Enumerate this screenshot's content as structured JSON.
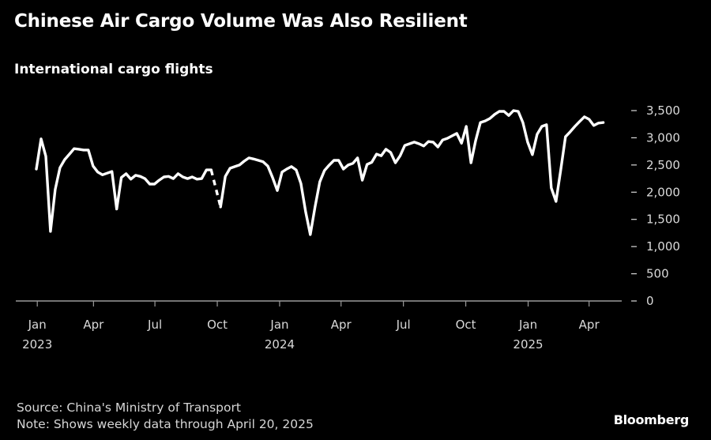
{
  "header": {
    "title": "Chinese Air Cargo Volume Was Also Resilient",
    "subtitle": "International cargo flights"
  },
  "footer": {
    "source": "Source: China's Ministry of Transport",
    "note": "Note: Shows weekly data through April 20, 2025",
    "brand": "Bloomberg"
  },
  "colors": {
    "background": "#000000",
    "line": "#ffffff",
    "axis": "#9a9a9a",
    "label": "#d9d9d9"
  },
  "chart_data": {
    "type": "line",
    "title": "Chinese Air Cargo Volume Was Also Resilient",
    "subtitle": "International cargo flights",
    "xlabel": "",
    "ylabel": "",
    "ylim": [
      0,
      3500
    ],
    "y_ticks": [
      0,
      500,
      1000,
      1500,
      2000,
      2500,
      3000,
      3500
    ],
    "y_tick_labels": [
      "0",
      "500",
      "1,000",
      "1,500",
      "2,000",
      "2,500",
      "3,000",
      "3,500"
    ],
    "y_axis_side": "right",
    "grid": false,
    "legend": "none",
    "x_unit": "week index from Jan 1, 2023",
    "x_ticks": [
      {
        "week": 0.2,
        "label": "Jan",
        "year": "2023"
      },
      {
        "week": 12.1,
        "label": "Apr",
        "year": ""
      },
      {
        "week": 25.1,
        "label": "Jul",
        "year": ""
      },
      {
        "week": 38.3,
        "label": "Oct",
        "year": ""
      },
      {
        "week": 51.5,
        "label": "Jan",
        "year": "2024"
      },
      {
        "week": 64.5,
        "label": "Apr",
        "year": ""
      },
      {
        "week": 77.7,
        "label": "Jul",
        "year": ""
      },
      {
        "week": 90.9,
        "label": "Oct",
        "year": ""
      },
      {
        "week": 104.1,
        "label": "Jan",
        "year": "2025"
      },
      {
        "week": 117.0,
        "label": "Apr",
        "year": ""
      }
    ],
    "series": [
      {
        "name": "International cargo flights",
        "segments": [
          {
            "style": "solid",
            "start_week": 0,
            "values": [
              2425,
              2980,
              2660,
              1280,
              2050,
              2450,
              2600,
              2700,
              2800,
              2790,
              2775,
              2775,
              2480,
              2370,
              2320,
              2350,
              2380,
              1690,
              2270,
              2340,
              2240,
              2310,
              2290,
              2250,
              2150,
              2150,
              2220,
              2280,
              2290,
              2250,
              2340,
              2280,
              2250,
              2280,
              2240,
              2250,
              2410,
              2410
            ]
          },
          {
            "style": "dashed",
            "start_week": 37,
            "values": [
              2410,
              1730
            ]
          },
          {
            "style": "solid",
            "start_week": 39,
            "values": [
              1730,
              2290,
              2440,
              2470,
              2500,
              2570,
              2630,
              2610,
              2585,
              2560,
              2480,
              2270,
              2030,
              2370,
              2425,
              2470,
              2410,
              2160,
              1640,
              1220,
              1730,
              2190,
              2400,
              2500,
              2585,
              2585,
              2425,
              2500,
              2530,
              2630,
              2220,
              2510,
              2550,
              2700,
              2670,
              2790,
              2730,
              2540,
              2670,
              2860,
              2890,
              2920,
              2890,
              2850,
              2930,
              2920,
              2830,
              2960,
              2990,
              3035,
              3080,
              2900,
              3210,
              2540,
              2950,
              3280,
              3310,
              3355,
              3430,
              3485,
              3485,
              3410,
              3500,
              3485,
              3280,
              2920,
              2690,
              3065,
              3210,
              3240,
              2080,
              1830,
              2410,
              3020,
              3110,
              3210,
              3300,
              3385,
              3340,
              3225,
              3270,
              3280
            ]
          }
        ]
      }
    ]
  }
}
